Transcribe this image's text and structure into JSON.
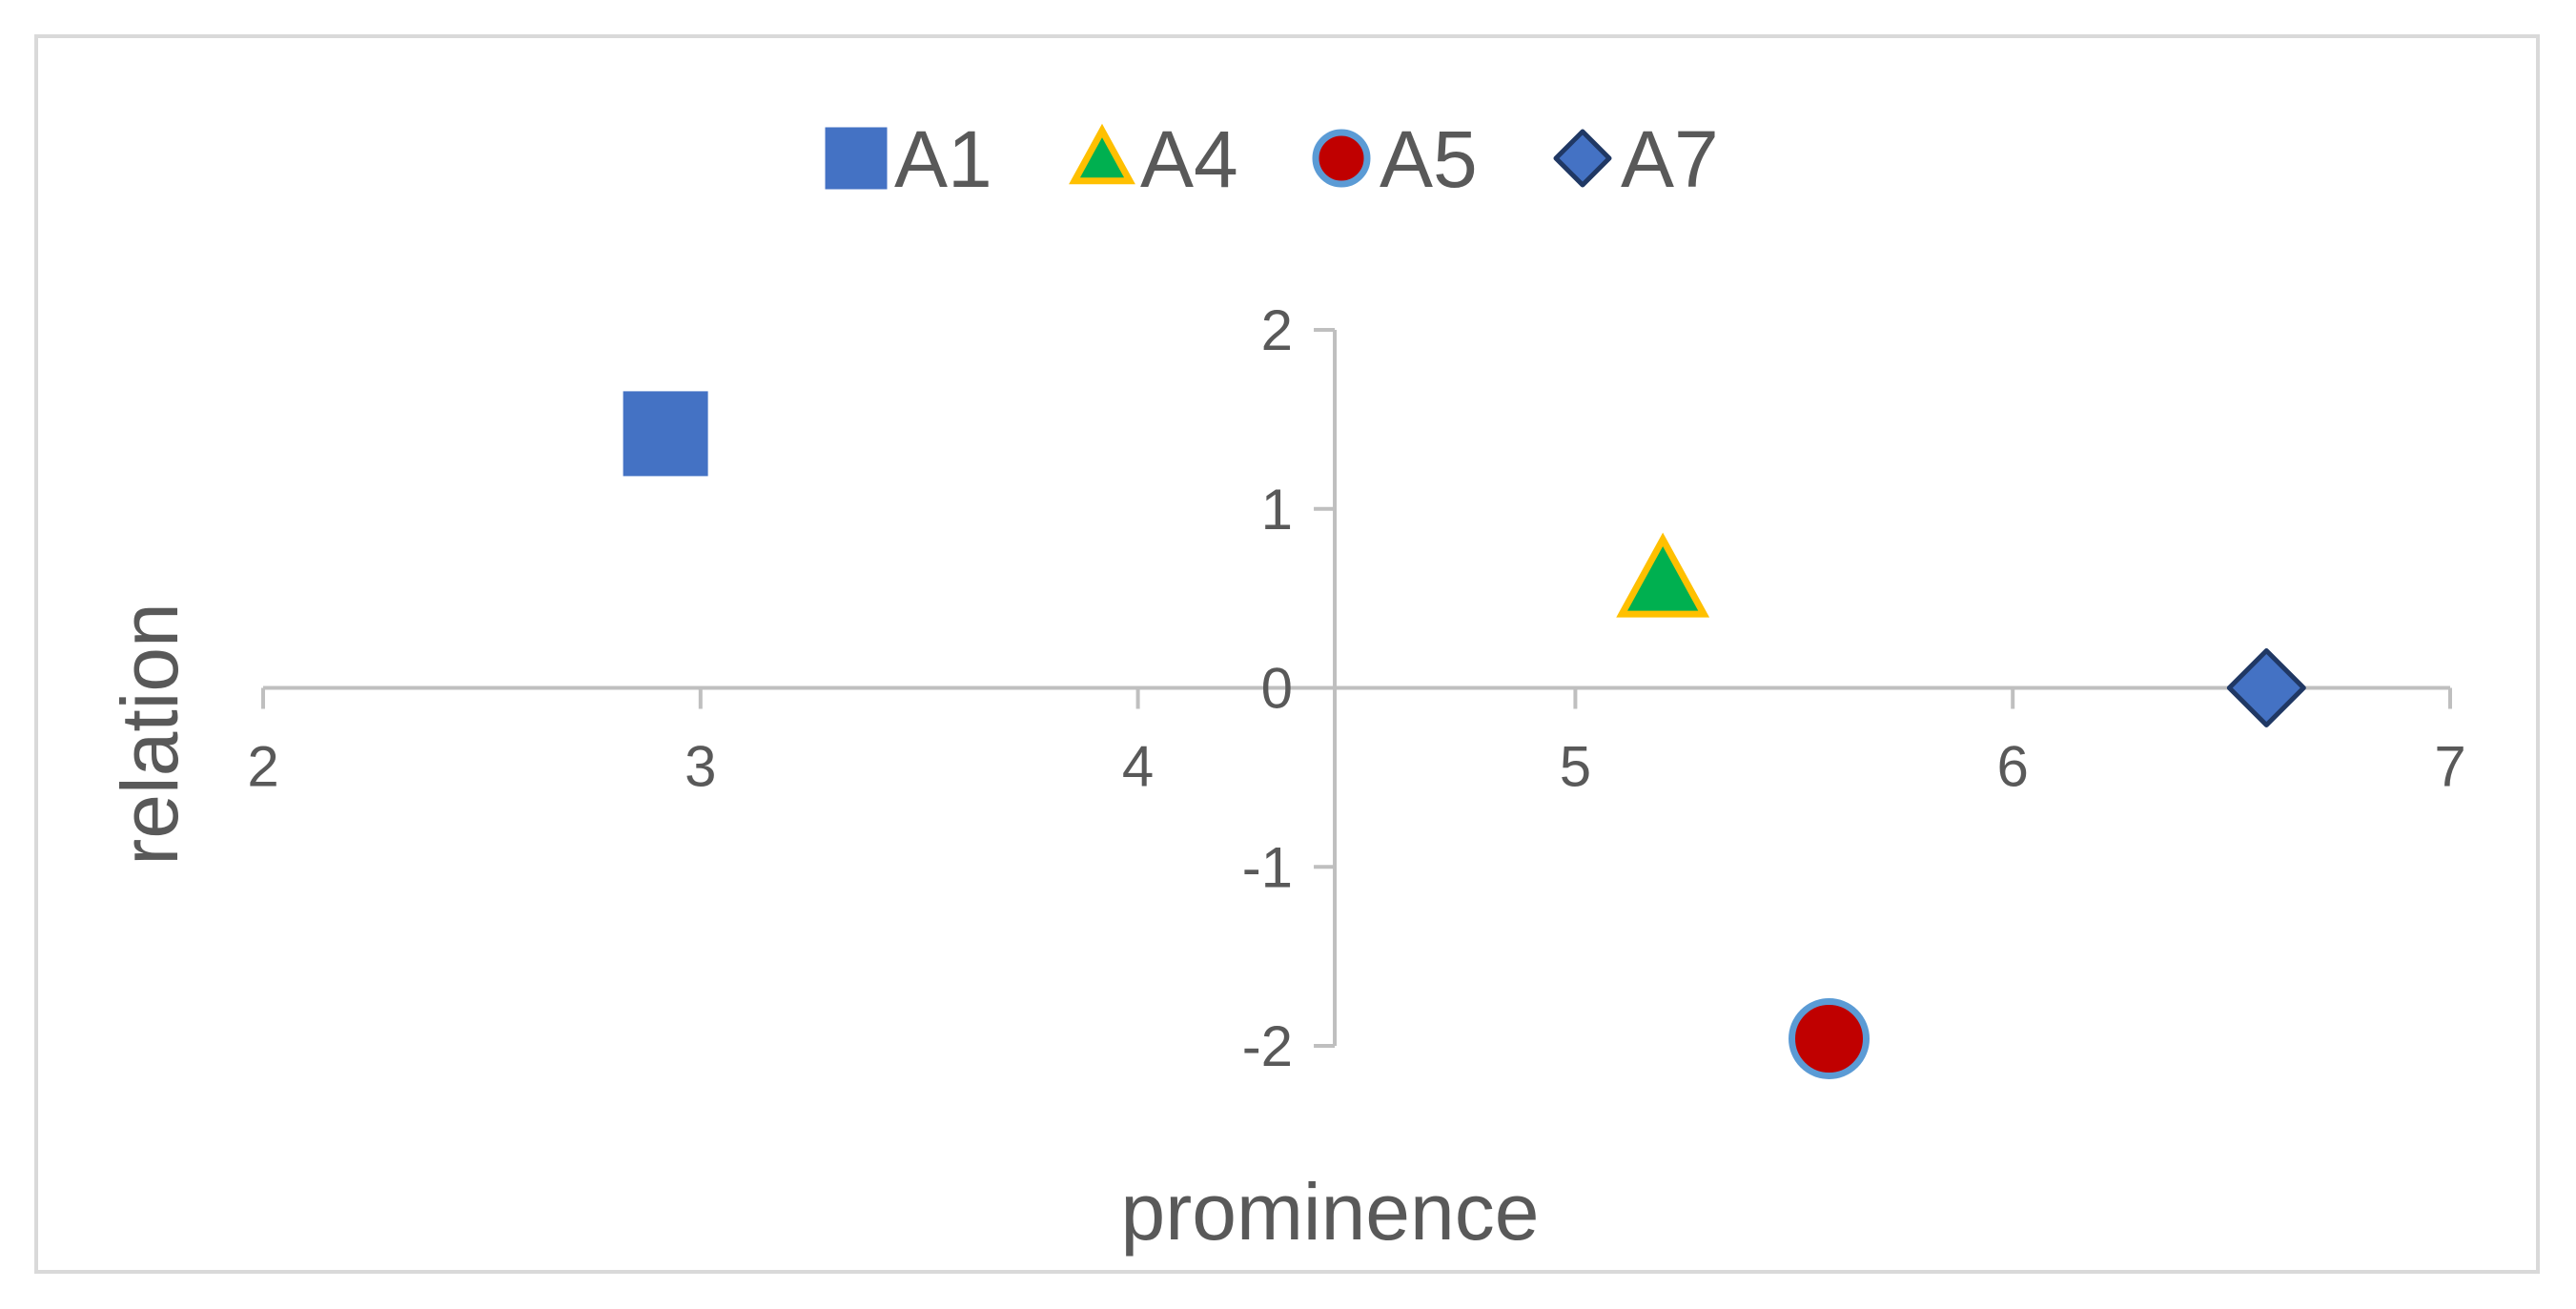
{
  "chart_data": {
    "type": "scatter",
    "title": "",
    "xlabel": "prominence",
    "ylabel": "relation",
    "xlim": [
      2,
      7
    ],
    "ylim": [
      -2,
      2
    ],
    "x_ticks": [
      "2",
      "3",
      "4",
      "5",
      "6",
      "7"
    ],
    "y_ticks": [
      "2",
      "1",
      "0",
      "-1",
      "-2"
    ],
    "legend_position": "top-center",
    "grid": false,
    "series": [
      {
        "name": "A1",
        "marker": "square",
        "fill": "#4472C4",
        "stroke": "#4472C4",
        "points": [
          {
            "x": 2.92,
            "y": 1.42
          }
        ]
      },
      {
        "name": "A4",
        "marker": "triangle",
        "fill": "#00B050",
        "stroke": "#FFC000",
        "points": [
          {
            "x": 5.2,
            "y": 0.6
          }
        ]
      },
      {
        "name": "A5",
        "marker": "circle",
        "fill": "#C00000",
        "stroke": "#5B9BD5",
        "points": [
          {
            "x": 5.58,
            "y": -1.96
          }
        ]
      },
      {
        "name": "A7",
        "marker": "diamond",
        "fill": "#4472C4",
        "stroke": "#203864",
        "points": [
          {
            "x": 6.58,
            "y": 0.0
          }
        ]
      }
    ]
  }
}
